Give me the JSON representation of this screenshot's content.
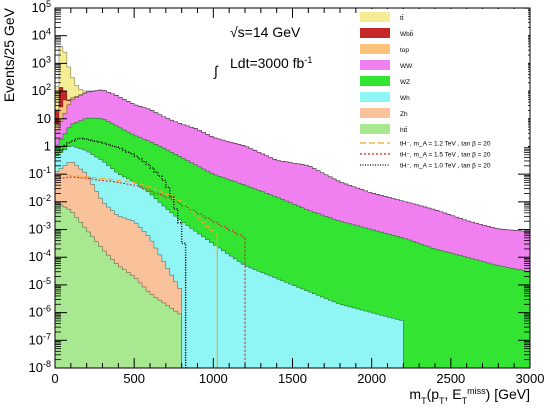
{
  "chart_data": {
    "type": "area",
    "title": "",
    "xlabel": "m_T(p_T, E_T^miss) [GeV]",
    "ylabel": "Events/25 GeV",
    "xlim": [
      0,
      3000
    ],
    "ylim": [
      1e-08,
      100000
    ],
    "yscale": "log",
    "grid": false,
    "legend_position": "top-right",
    "x_ticks": [
      "0",
      "500",
      "1000",
      "1500",
      "2000",
      "2500",
      "3000"
    ],
    "y_ticks": [
      "10^-8",
      "10^-7",
      "10^-6",
      "10^-5",
      "10^-4",
      "10^-3",
      "10^-2",
      "10^-1",
      "1",
      "10",
      "10^2",
      "10^3",
      "10^4",
      "10^5"
    ],
    "annotations": [
      "√s=14 GeV",
      "∫ Ldt=3000 fb^-1"
    ],
    "background_stack": [
      {
        "name": "tt̄",
        "color": "#f5ec96",
        "points": [
          [
            0,
            5
          ],
          [
            25,
            3000
          ],
          [
            50,
            5000
          ],
          [
            75,
            1200
          ],
          [
            100,
            400
          ],
          [
            125,
            150
          ],
          [
            150,
            60
          ],
          [
            175,
            25
          ],
          [
            200,
            10
          ],
          [
            225,
            4
          ],
          [
            250,
            1.5
          ],
          [
            275,
            0.5
          ],
          [
            300,
            0.1
          ]
        ]
      },
      {
        "name": "Wbb̄",
        "color": "#c62828",
        "points": [
          [
            0,
            2
          ],
          [
            25,
            100
          ],
          [
            50,
            120
          ],
          [
            75,
            20
          ],
          [
            100,
            0.5
          ]
        ]
      },
      {
        "name": "top",
        "color": "#fbc27a",
        "points": [
          [
            0,
            1
          ],
          [
            50,
            50
          ],
          [
            100,
            8
          ],
          [
            200,
            2
          ],
          [
            300,
            0.5
          ],
          [
            400,
            0.2
          ],
          [
            500,
            0.06
          ],
          [
            600,
            0.02
          ],
          [
            700,
            0.004
          ],
          [
            800,
            0.001
          ],
          [
            900,
            0.0002
          ]
        ]
      },
      {
        "name": "WW",
        "color": "#f080f0",
        "points": [
          [
            0,
            2
          ],
          [
            100,
            40
          ],
          [
            200,
            80
          ],
          [
            300,
            100
          ],
          [
            400,
            60
          ],
          [
            500,
            30
          ],
          [
            600,
            20
          ],
          [
            700,
            10
          ],
          [
            800,
            6
          ],
          [
            900,
            4
          ],
          [
            1000,
            2
          ],
          [
            1200,
            1
          ],
          [
            1400,
            0.3
          ],
          [
            1600,
            0.2
          ],
          [
            1800,
            0.05
          ],
          [
            2000,
            0.02
          ],
          [
            2200,
            0.01
          ],
          [
            2400,
            0.005
          ],
          [
            2600,
            0.002
          ],
          [
            2800,
            0.001
          ],
          [
            3000,
            0.0008
          ]
        ]
      },
      {
        "name": "WZ",
        "color": "#33e433",
        "points": [
          [
            0,
            0.5
          ],
          [
            100,
            5
          ],
          [
            200,
            10
          ],
          [
            300,
            10
          ],
          [
            400,
            5
          ],
          [
            500,
            2.5
          ],
          [
            600,
            1.5
          ],
          [
            700,
            0.8
          ],
          [
            800,
            0.4
          ],
          [
            900,
            0.2
          ],
          [
            1000,
            0.1
          ],
          [
            1200,
            0.04
          ],
          [
            1400,
            0.015
          ],
          [
            1600,
            0.005
          ],
          [
            1800,
            0.002
          ],
          [
            2000,
            0.001
          ],
          [
            2200,
            0.0005
          ],
          [
            2400,
            0.0002
          ],
          [
            2600,
            0.0001
          ],
          [
            2800,
            5e-05
          ],
          [
            3000,
            3e-05
          ]
        ]
      },
      {
        "name": "Wh",
        "color": "#8ff5f5",
        "points": [
          [
            0,
            0.3
          ],
          [
            100,
            0.8
          ],
          [
            200,
            0.6
          ],
          [
            300,
            0.3
          ],
          [
            400,
            0.1
          ],
          [
            500,
            0.05
          ],
          [
            600,
            0.02
          ],
          [
            700,
            0.006
          ],
          [
            800,
            0.002
          ],
          [
            1000,
            0.0003
          ],
          [
            1200,
            5e-05
          ],
          [
            1500,
            1e-05
          ],
          [
            1800,
            2e-06
          ],
          [
            2200,
            5e-07
          ]
        ]
      },
      {
        "name": "Zh",
        "color": "#f9c29a",
        "points": [
          [
            0,
            0.1
          ],
          [
            100,
            0.3
          ],
          [
            200,
            0.1
          ],
          [
            300,
            0.01
          ],
          [
            400,
            0.003
          ],
          [
            500,
            0.002
          ],
          [
            600,
            0.0005
          ],
          [
            700,
            5e-05
          ],
          [
            800,
            5e-06
          ]
        ]
      },
      {
        "name": "htt̄",
        "color": "#a8e890",
        "points": [
          [
            0,
            0.01
          ],
          [
            100,
            0.005
          ],
          [
            200,
            0.001
          ],
          [
            300,
            0.0002
          ],
          [
            400,
            5e-05
          ],
          [
            500,
            2e-05
          ],
          [
            600,
            5e-06
          ],
          [
            700,
            2e-06
          ],
          [
            800,
            8e-07
          ]
        ]
      }
    ],
    "signal_series": [
      {
        "name": "tH^-, m_A = 1.2 TeV , tan β = 20",
        "legend_label": "tH⁻,  m_A = 1.2  TeV  ,  tan β = 20",
        "color": "#f5a623",
        "dash": "6,3",
        "points": [
          [
            25,
            0.1
          ],
          [
            50,
            0.1
          ],
          [
            100,
            0.09
          ],
          [
            200,
            0.08
          ],
          [
            300,
            0.07
          ],
          [
            400,
            0.06
          ],
          [
            500,
            0.05
          ],
          [
            600,
            0.035
          ],
          [
            700,
            0.02
          ],
          [
            800,
            0.01
          ],
          [
            850,
            0.006
          ],
          [
            900,
            0.003
          ],
          [
            950,
            0.0015
          ],
          [
            1000,
            0.0008
          ],
          [
            1025,
            0.0006
          ]
        ]
      },
      {
        "name": "tH^-, m_A = 1.5 TeV , tan β = 20",
        "legend_label": "tH⁻,  m_A = 1.5  TeV  ,  tan β = 20",
        "color": "#c62828",
        "dash": "2,2",
        "points": [
          [
            25,
            0.08
          ],
          [
            50,
            0.07
          ],
          [
            100,
            0.08
          ],
          [
            200,
            0.07
          ],
          [
            300,
            0.06
          ],
          [
            400,
            0.05
          ],
          [
            500,
            0.04
          ],
          [
            600,
            0.025
          ],
          [
            700,
            0.015
          ],
          [
            800,
            0.008
          ],
          [
            900,
            0.004
          ],
          [
            1000,
            0.002
          ],
          [
            1100,
            0.001
          ],
          [
            1200,
            0.0005
          ]
        ]
      },
      {
        "name": "tH^-, m_A = 1.0 TeV , tan β = 20",
        "legend_label": "tH⁻,  m_A = 1.0  TeV  ,  tan β = 20",
        "color": "#000000",
        "dash": "1,1.5",
        "points": [
          [
            25,
            0.5
          ],
          [
            50,
            1
          ],
          [
            100,
            1.5
          ],
          [
            150,
            2
          ],
          [
            200,
            1.8
          ],
          [
            300,
            1.4
          ],
          [
            400,
            0.9
          ],
          [
            500,
            0.5
          ],
          [
            600,
            0.2
          ],
          [
            650,
            0.1
          ],
          [
            700,
            0.05
          ],
          [
            750,
            0.01
          ],
          [
            800,
            0.001
          ],
          [
            825,
            0.0001
          ]
        ]
      }
    ]
  }
}
